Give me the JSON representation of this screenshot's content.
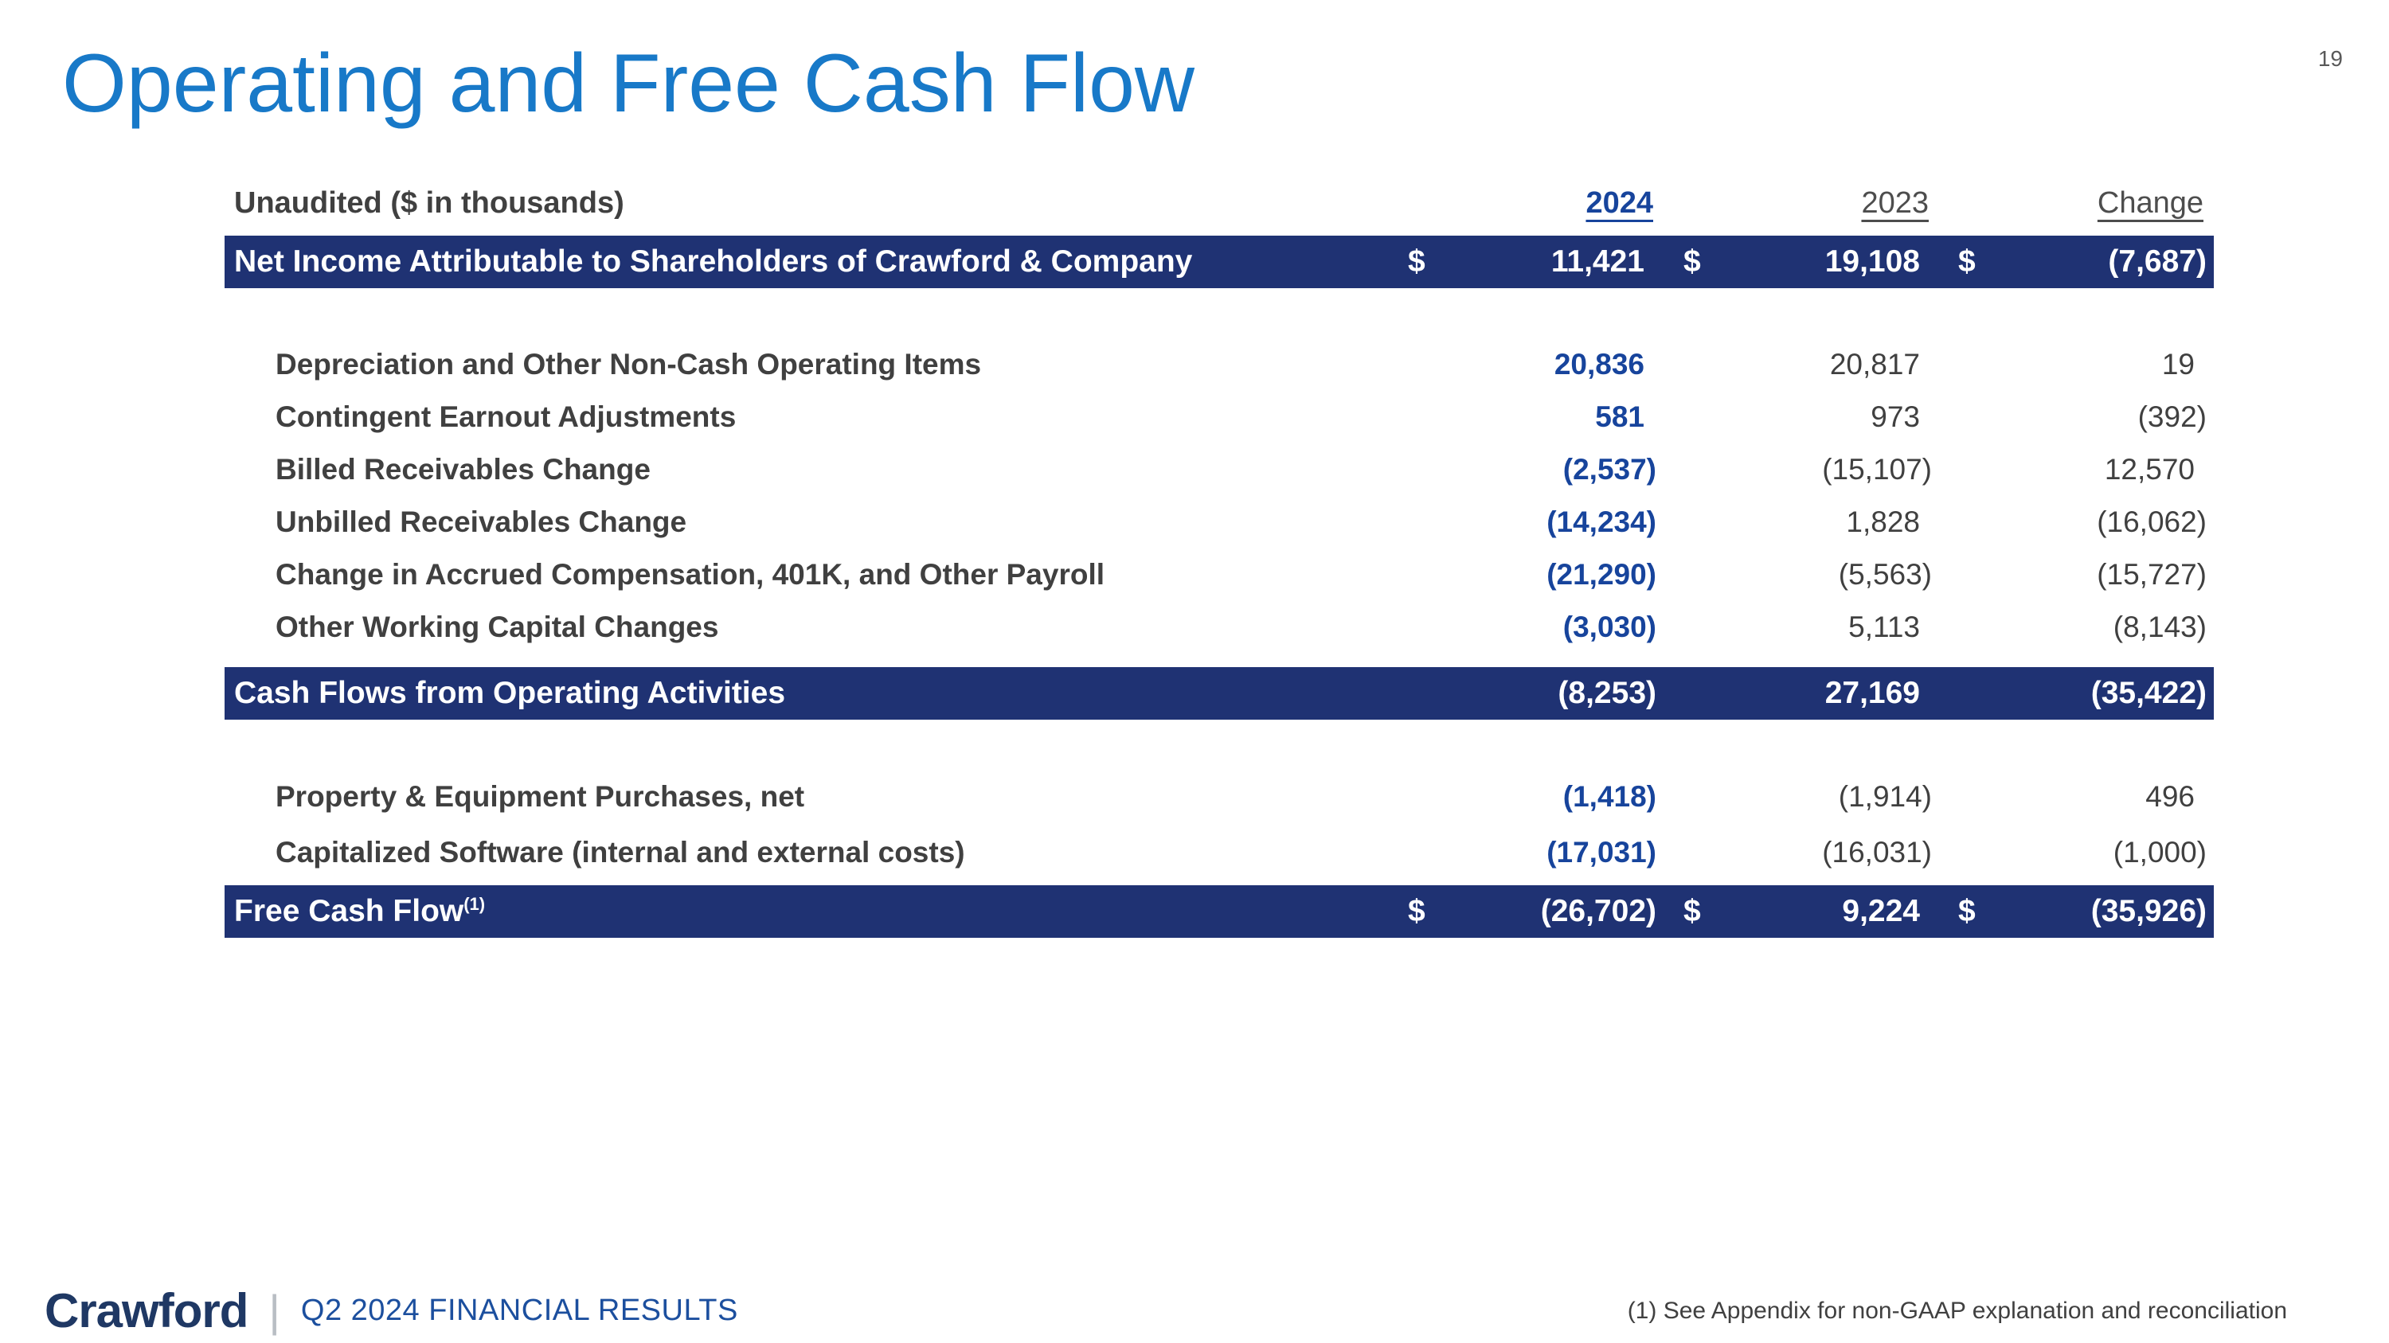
{
  "page": {
    "title": "Operating and Free Cash Flow",
    "page_number": "19"
  },
  "colors": {
    "title_blue": "#1879c8",
    "band_navy": "#1f3273",
    "value_blue": "#17449c",
    "text_gray": "#404040",
    "logo_navy": "#1f3864"
  },
  "table": {
    "header": {
      "label": "Unaudited ($ in thousands)",
      "y2024": "2024",
      "y2023": "2023",
      "change": "Change"
    },
    "net_income": {
      "label": "Net Income Attributable to Shareholders of Crawford & Company",
      "dollar": "$",
      "v2024": "11,421",
      "v2023": "19,108",
      "vchange": "(7,687)"
    },
    "adjustments": [
      {
        "label": "Depreciation and Other Non-Cash Operating Items",
        "v2024": "20,836",
        "v2023": "20,817",
        "vchange": "19"
      },
      {
        "label": "Contingent Earnout Adjustments",
        "v2024": "581",
        "v2023": "973",
        "vchange": "(392)"
      },
      {
        "label": "Billed Receivables Change",
        "v2024": "(2,537)",
        "v2023": "(15,107)",
        "vchange": "12,570"
      },
      {
        "label": "Unbilled Receivables Change",
        "v2024": "(14,234)",
        "v2023": "1,828",
        "vchange": "(16,062)"
      },
      {
        "label": "Change in Accrued Compensation, 401K, and Other Payroll",
        "v2024": "(21,290)",
        "v2023": "(5,563)",
        "vchange": "(15,727)"
      },
      {
        "label": "Other Working Capital Changes",
        "v2024": "(3,030)",
        "v2023": "5,113",
        "vchange": "(8,143)"
      }
    ],
    "operating_total": {
      "label": "Cash Flows from Operating Activities",
      "v2024": "(8,253)",
      "v2023": "27,169",
      "vchange": "(35,422)"
    },
    "investing": [
      {
        "label": "Property & Equipment Purchases, net",
        "v2024": "(1,418)",
        "v2023": "(1,914)",
        "vchange": "496"
      },
      {
        "label": "Capitalized Software (internal and external costs)",
        "v2024": "(17,031)",
        "v2023": "(16,031)",
        "vchange": "(1,000)"
      }
    ],
    "free_cash_flow": {
      "label": "Free Cash Flow",
      "note_ref": "(1)",
      "dollar": "$",
      "v2024": "(26,702)",
      "v2023": "9,224",
      "vchange": "(35,926)"
    }
  },
  "footer": {
    "logo": "Crawford",
    "separator": "|",
    "subtitle": "Q2 2024 FINANCIAL RESULTS",
    "footnote": "(1) See Appendix for non-GAAP explanation and reconciliation"
  }
}
